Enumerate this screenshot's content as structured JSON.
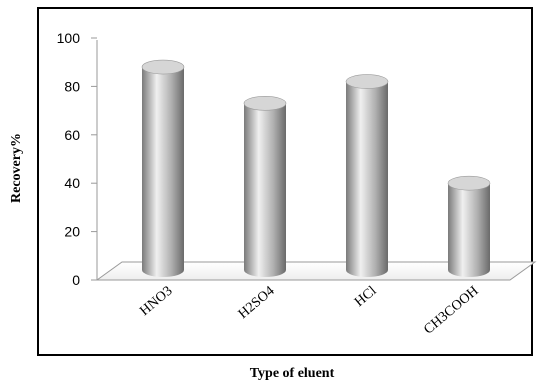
{
  "chart_data": {
    "type": "bar",
    "categories": [
      "HNO3",
      "H2SO4",
      "HCl",
      "CH3COOH"
    ],
    "values": [
      88,
      73,
      82,
      40
    ],
    "ylabel": "Recovery%",
    "xlabel": "Type of eluent",
    "ylim": [
      0,
      100
    ],
    "yticks": [
      "0",
      "20",
      "40",
      "60",
      "80",
      "100"
    ],
    "grid": false,
    "legend": "none",
    "colors": {
      "bar_light": "#f2f2f2",
      "bar_mid": "#b3b3b3",
      "bar_dark": "#6e6e6e",
      "frame": "#000000"
    }
  }
}
